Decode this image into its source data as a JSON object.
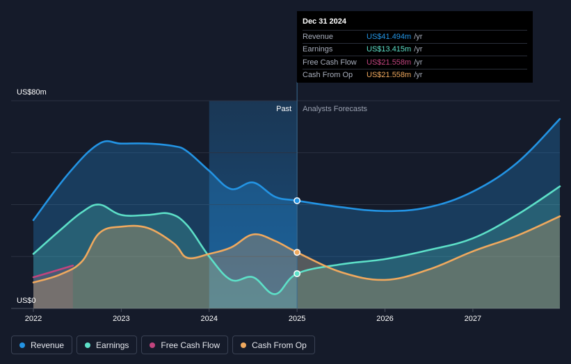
{
  "chart_data": {
    "type": "area",
    "title": "",
    "x_ticks": [
      "2022",
      "2023",
      "2024",
      "2025",
      "2026",
      "2027"
    ],
    "y_labels": {
      "top": "US$80m",
      "bottom": "US$0"
    },
    "ylim": [
      0,
      80
    ],
    "xlim": [
      2022.0,
      2027.99
    ],
    "past_label": "Past",
    "forecast_label": "Analysts Forecasts",
    "divider_x": 2025.0,
    "shade_start_x": 2024.0,
    "series": [
      {
        "name": "Revenue",
        "color": "#2394e4",
        "x": [
          2022.0,
          2022.4,
          2022.75,
          2023.0,
          2023.3,
          2023.6,
          2023.75,
          2024.0,
          2024.25,
          2024.5,
          2024.75,
          2025.0,
          2025.5,
          2026.0,
          2026.5,
          2027.0,
          2027.5,
          2027.99
        ],
        "values": [
          34,
          52,
          63.5,
          63.5,
          63.5,
          62.5,
          60.5,
          53,
          46,
          48.5,
          43,
          41.5,
          39,
          37.5,
          39,
          45,
          56,
          73
        ]
      },
      {
        "name": "Earnings",
        "color": "#5de0c8",
        "x": [
          2022.0,
          2022.3,
          2022.55,
          2022.75,
          2023.0,
          2023.3,
          2023.55,
          2023.75,
          2024.0,
          2024.25,
          2024.5,
          2024.75,
          2025.0,
          2025.5,
          2026.0,
          2026.5,
          2027.0,
          2027.5,
          2027.99
        ],
        "values": [
          21,
          30,
          37,
          40,
          36,
          36,
          36.5,
          32,
          20,
          11,
          12,
          5.5,
          13.4,
          17,
          19,
          22.5,
          27,
          36,
          47
        ]
      },
      {
        "name": "Free Cash Flow",
        "color": "#c2447e",
        "x": [
          2022.0,
          2022.45
        ],
        "values": [
          12,
          16.5
        ]
      },
      {
        "name": "Cash From Op",
        "color": "#f0a95e",
        "x": [
          2022.0,
          2022.3,
          2022.55,
          2022.75,
          2023.0,
          2023.3,
          2023.6,
          2023.75,
          2024.0,
          2024.25,
          2024.5,
          2024.75,
          2025.0,
          2025.5,
          2026.0,
          2026.5,
          2027.0,
          2027.5,
          2027.99
        ],
        "values": [
          10,
          13,
          18,
          29,
          31.5,
          31,
          25,
          19.5,
          21,
          23.5,
          28.5,
          26,
          21.6,
          14,
          11,
          15,
          22,
          28,
          35.5
        ]
      }
    ],
    "highlight": [
      {
        "series": "Revenue",
        "x": 2025.0,
        "value": 41.5
      },
      {
        "series": "Earnings",
        "x": 2025.0,
        "value": 13.4
      },
      {
        "series": "Cash From Op",
        "x": 2025.0,
        "value": 21.6
      }
    ]
  },
  "tooltip": {
    "date": "Dec 31 2024",
    "rows": [
      {
        "label": "Revenue",
        "value": "US$41.494m",
        "unit": "/yr",
        "color": "#2394e4"
      },
      {
        "label": "Earnings",
        "value": "US$13.415m",
        "unit": "/yr",
        "color": "#5de0c8"
      },
      {
        "label": "Free Cash Flow",
        "value": "US$21.558m",
        "unit": "/yr",
        "color": "#c2447e"
      },
      {
        "label": "Cash From Op",
        "value": "US$21.558m",
        "unit": "/yr",
        "color": "#f0a95e"
      }
    ]
  },
  "legend": [
    {
      "label": "Revenue",
      "color": "#2394e4"
    },
    {
      "label": "Earnings",
      "color": "#5de0c8"
    },
    {
      "label": "Free Cash Flow",
      "color": "#c2447e"
    },
    {
      "label": "Cash From Op",
      "color": "#f0a95e"
    }
  ]
}
